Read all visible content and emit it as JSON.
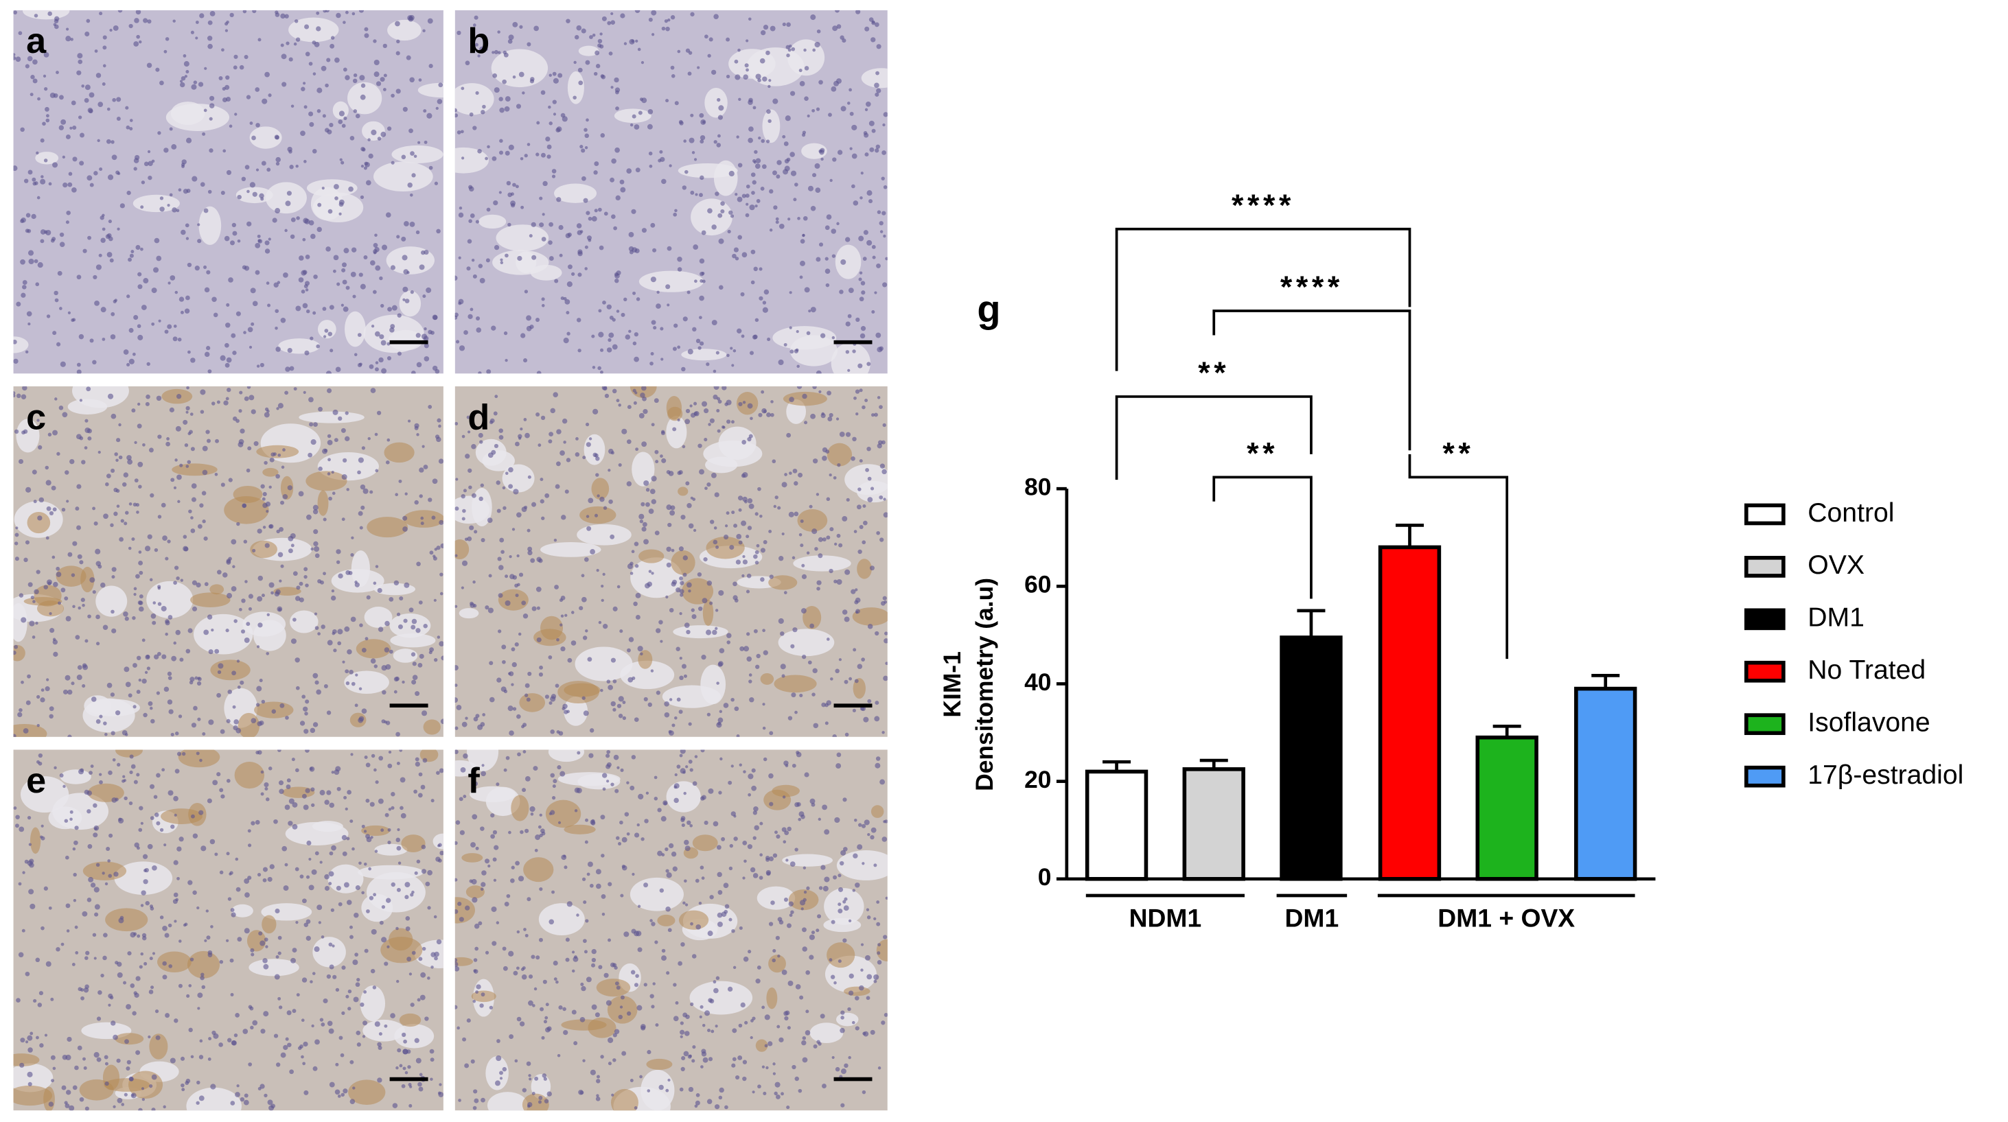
{
  "micrographs": [
    "a",
    "b",
    "c",
    "d",
    "e",
    "f"
  ],
  "chart_data": {
    "type": "bar",
    "label": "g",
    "y_label": [
      "KIM-1",
      "Densitometry (a.u)"
    ],
    "categories": [
      "Control",
      "OVX",
      "DM1",
      "No Trated",
      "Isoflavone",
      "17β-estradiol"
    ],
    "values": [
      22,
      22.5,
      49.5,
      68,
      29,
      39
    ],
    "errors": [
      2,
      1.8,
      5.5,
      4.5,
      2.3,
      2.7
    ],
    "colors": [
      "#ffffff",
      "#d3d3d3",
      "#000000",
      "#ff0000",
      "#1db31d",
      "#4f9bf5"
    ],
    "ylim": [
      0,
      80
    ],
    "yticks": [
      0,
      20,
      40,
      60,
      80
    ],
    "groups": [
      "NDM1",
      "DM1",
      "DM1 + OVX"
    ],
    "annotations": [
      "****",
      "****",
      "**",
      "**",
      "**"
    ],
    "legend": "right"
  }
}
